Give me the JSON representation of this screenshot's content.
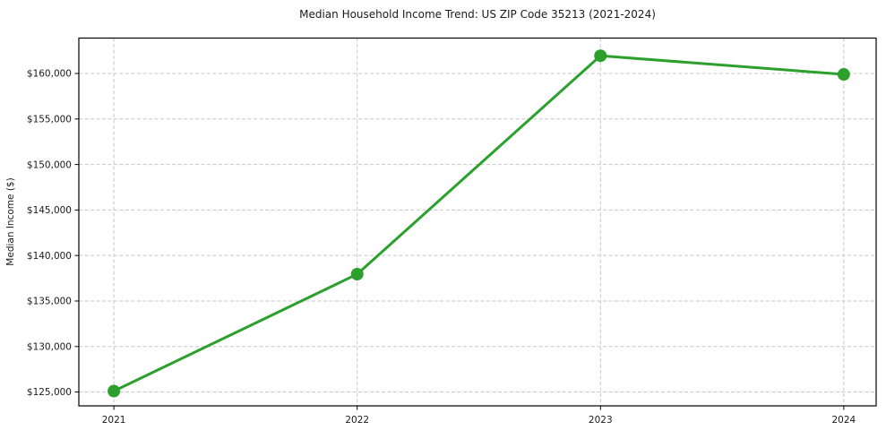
{
  "chart_data": {
    "type": "line",
    "title": "Median Household Income Trend: US ZIP Code 35213 (2021-2024)",
    "xlabel": "",
    "ylabel": "Median Income ($)",
    "x": [
      2021,
      2022,
      2023,
      2024
    ],
    "x_tick_labels": [
      "2021",
      "2022",
      "2023",
      "2024"
    ],
    "series": [
      {
        "name": "Median Household Income",
        "values": [
          125100,
          137950,
          161950,
          159900
        ],
        "color": "#2ca02c",
        "marker": "circle",
        "line_width": 3,
        "marker_size": 7
      }
    ],
    "y_ticks": [
      125000,
      130000,
      135000,
      140000,
      145000,
      150000,
      155000,
      160000
    ],
    "y_tick_labels": [
      "$125,000",
      "$130,000",
      "$135,000",
      "$140,000",
      "$145,000",
      "$150,000",
      "$155,000",
      "$160,000"
    ],
    "xlim": [
      2020.856,
      2024.133
    ],
    "ylim": [
      123480,
      163890
    ],
    "grid": {
      "visible": true,
      "style": "dashed",
      "axes": "both",
      "color": "#c7c7c7"
    },
    "legend": {
      "visible": false
    },
    "colors": {
      "spine": "#000000",
      "text": "#1a1a1a",
      "background": "#ffffff"
    }
  }
}
